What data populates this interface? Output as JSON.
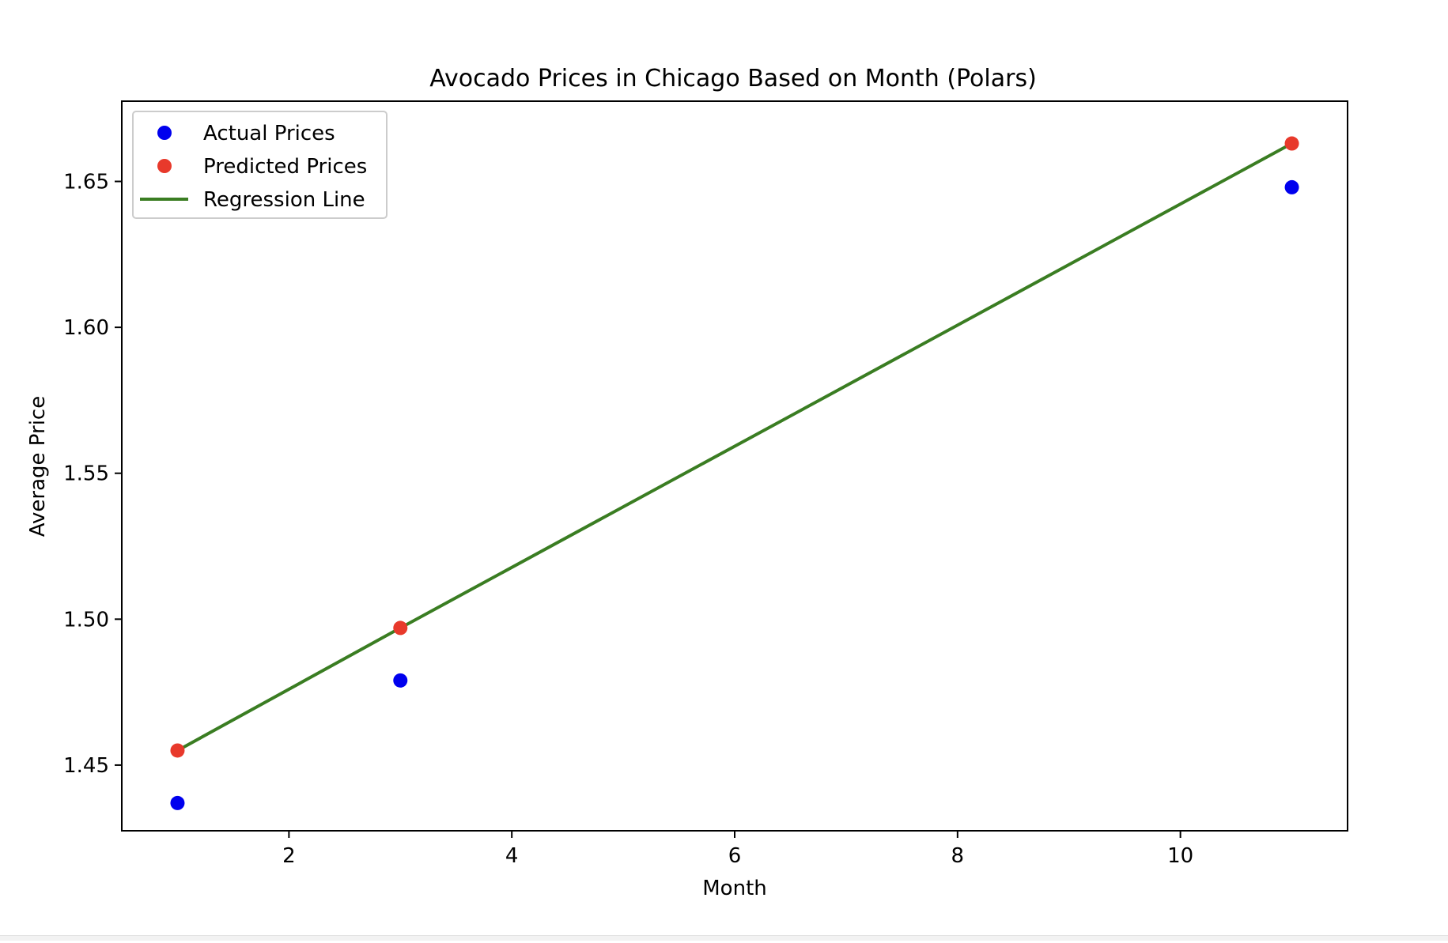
{
  "chart_data": {
    "type": "scatter",
    "title": "Avocado Prices in Chicago Based on Month (Polars)",
    "xlabel": "Month",
    "ylabel": "Average Price",
    "xlim": [
      0.5,
      11.5
    ],
    "ylim": [
      1.4275,
      1.6775
    ],
    "xticks": [
      2,
      4,
      6,
      8,
      10
    ],
    "xtick_labels": [
      "2",
      "4",
      "6",
      "8",
      "10"
    ],
    "yticks": [
      1.45,
      1.5,
      1.55,
      1.6,
      1.65
    ],
    "ytick_labels": [
      "1.45",
      "1.50",
      "1.55",
      "1.60",
      "1.65"
    ],
    "grid": false,
    "legend_position": "top-left",
    "series": [
      {
        "name": "Actual Prices",
        "kind": "scatter",
        "color": "#0000ee",
        "x": [
          1,
          3,
          11
        ],
        "y": [
          1.437,
          1.479,
          1.648
        ]
      },
      {
        "name": "Predicted Prices",
        "kind": "scatter",
        "color": "#e8392b",
        "x": [
          1,
          3,
          11
        ],
        "y": [
          1.455,
          1.497,
          1.663
        ]
      },
      {
        "name": "Regression Line",
        "kind": "line",
        "color": "#3a7d22",
        "x": [
          1,
          3,
          11
        ],
        "y": [
          1.455,
          1.497,
          1.663
        ]
      }
    ]
  }
}
